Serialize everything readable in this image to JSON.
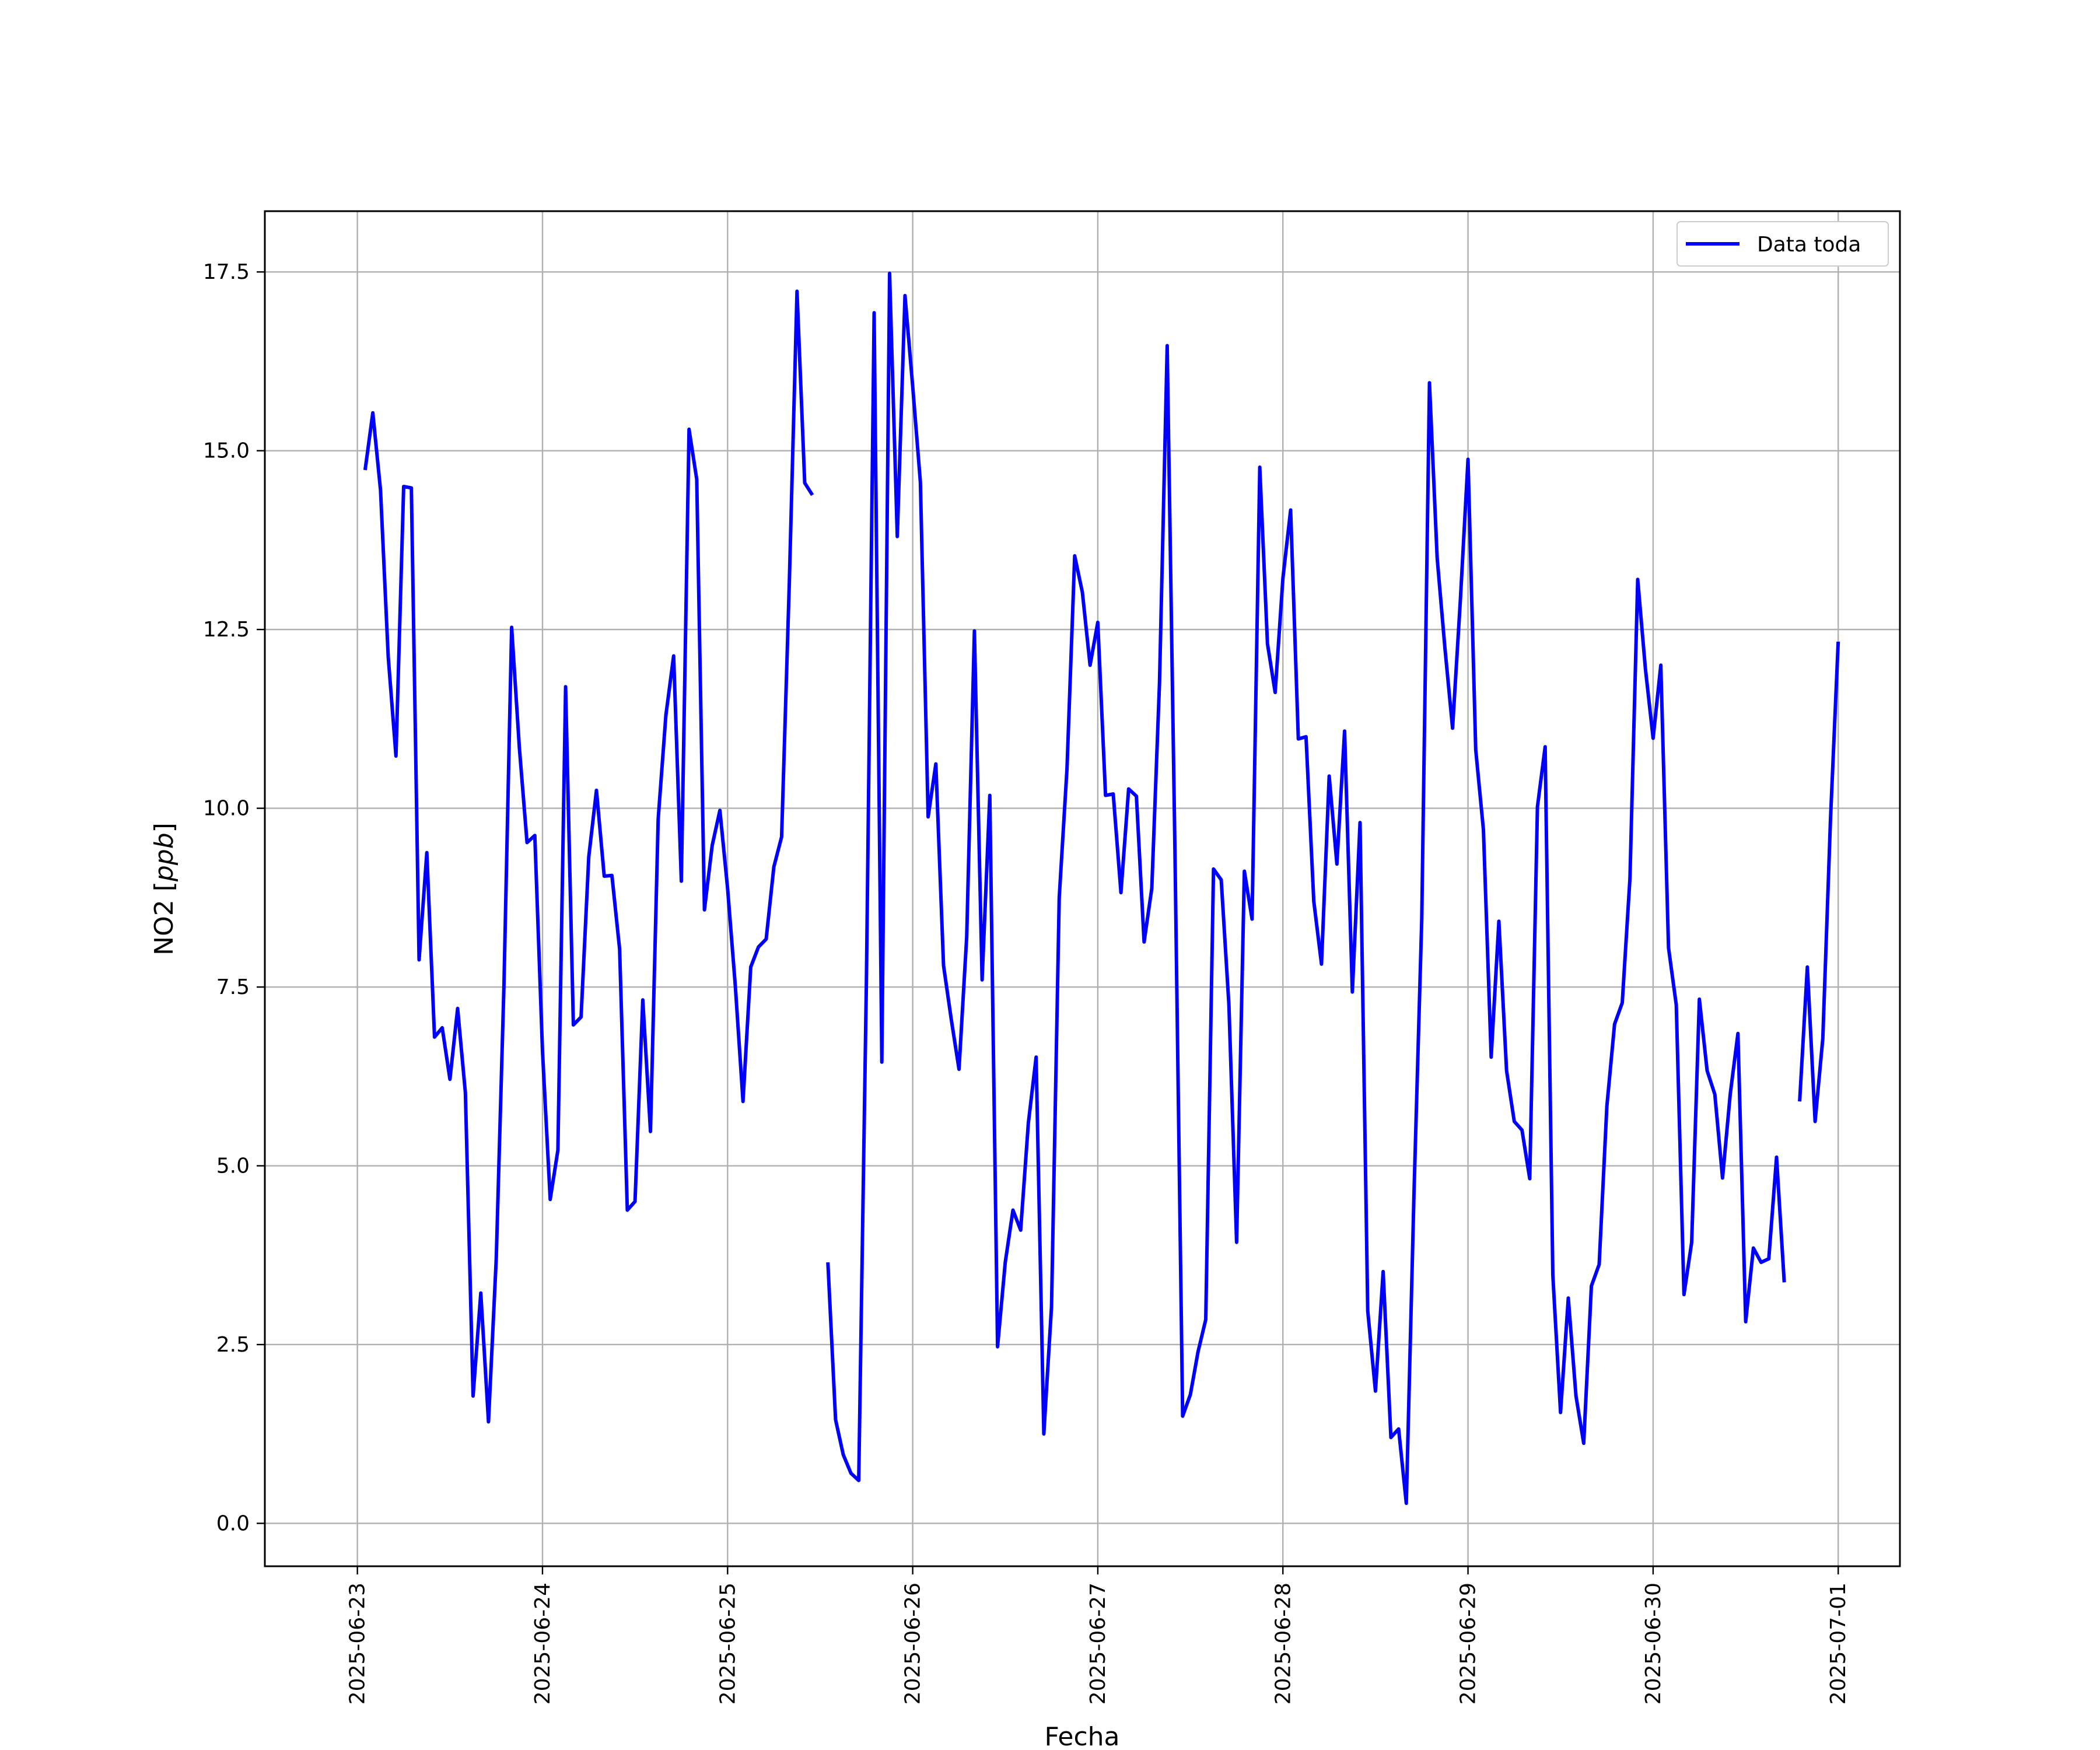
{
  "chart_data": {
    "type": "line",
    "title": "",
    "xlabel": "Fecha",
    "ylabel_main": "NO2",
    "ylabel_unit": "ppb",
    "x_tick_labels": [
      "2025-06-23",
      "2025-06-24",
      "2025-06-25",
      "2025-06-26",
      "2025-06-27",
      "2025-06-28",
      "2025-06-29",
      "2025-06-30",
      "2025-07-01"
    ],
    "y_tick_labels": [
      "0.0",
      "2.5",
      "5.0",
      "7.5",
      "10.0",
      "12.5",
      "15.0",
      "17.5"
    ],
    "y_ticks": [
      0,
      2.5,
      5,
      7.5,
      10,
      12.5,
      15,
      17.5
    ],
    "xlim": [
      "2025-06-22T12:00",
      "2025-07-01T08:00"
    ],
    "ylim": [
      -0.6,
      18.35
    ],
    "grid": true,
    "legend_position": "top-right",
    "series_color": "#0000ff",
    "series": [
      {
        "name": "Data toda",
        "points": [
          [
            "2025-06-23T01:00",
            14.73
          ],
          [
            "2025-06-23T02:00",
            15.53
          ],
          [
            "2025-06-23T03:00",
            14.45
          ],
          [
            "2025-06-23T04:00",
            12.12
          ],
          [
            "2025-06-23T05:00",
            10.73
          ],
          [
            "2025-06-23T06:00",
            14.5
          ],
          [
            "2025-06-23T07:00",
            14.48
          ],
          [
            "2025-06-23T08:00",
            7.88
          ],
          [
            "2025-06-23T09:00",
            9.38
          ],
          [
            "2025-06-23T10:00",
            6.8
          ],
          [
            "2025-06-23T11:00",
            6.93
          ],
          [
            "2025-06-23T12:00",
            6.21
          ],
          [
            "2025-06-23T13:00",
            7.2
          ],
          [
            "2025-06-23T14:00",
            6.02
          ],
          [
            "2025-06-23T15:00",
            1.78
          ],
          [
            "2025-06-23T16:00",
            3.22
          ],
          [
            "2025-06-23T17:00",
            1.42
          ],
          [
            "2025-06-23T18:00",
            3.7
          ],
          [
            "2025-06-23T19:00",
            7.52
          ],
          [
            "2025-06-23T20:00",
            12.53
          ],
          [
            "2025-06-23T21:00",
            10.85
          ],
          [
            "2025-06-23T22:00",
            9.52
          ],
          [
            "2025-06-23T23:00",
            9.62
          ],
          [
            "2025-06-24T00:00",
            6.6
          ],
          [
            "2025-06-24T01:00",
            4.53
          ],
          [
            "2025-06-24T02:00",
            5.22
          ],
          [
            "2025-06-24T03:00",
            11.7
          ],
          [
            "2025-06-24T04:00",
            6.97
          ],
          [
            "2025-06-24T05:00",
            7.08
          ],
          [
            "2025-06-24T06:00",
            9.32
          ],
          [
            "2025-06-24T07:00",
            10.25
          ],
          [
            "2025-06-24T08:00",
            9.05
          ],
          [
            "2025-06-24T09:00",
            9.06
          ],
          [
            "2025-06-24T10:00",
            8.03
          ],
          [
            "2025-06-24T11:00",
            4.38
          ],
          [
            "2025-06-24T12:00",
            4.5
          ],
          [
            "2025-06-24T13:00",
            7.32
          ],
          [
            "2025-06-24T14:00",
            5.48
          ],
          [
            "2025-06-24T15:00",
            9.85
          ],
          [
            "2025-06-24T16:00",
            11.3
          ],
          [
            "2025-06-24T17:00",
            12.13
          ],
          [
            "2025-06-24T18:00",
            8.98
          ],
          [
            "2025-06-24T19:00",
            15.3
          ],
          [
            "2025-06-24T20:00",
            14.6
          ],
          [
            "2025-06-24T21:00",
            8.58
          ],
          [
            "2025-06-24T22:00",
            9.48
          ],
          [
            "2025-06-24T23:00",
            9.97
          ],
          [
            "2025-06-25T00:00",
            8.88
          ],
          [
            "2025-06-25T01:00",
            7.52
          ],
          [
            "2025-06-25T02:00",
            5.9
          ],
          [
            "2025-06-25T03:00",
            7.78
          ],
          [
            "2025-06-25T04:00",
            8.06
          ],
          [
            "2025-06-25T05:00",
            8.17
          ],
          [
            "2025-06-25T06:00",
            9.18
          ],
          [
            "2025-06-25T07:00",
            9.6
          ],
          [
            "2025-06-25T08:00",
            13.15
          ],
          [
            "2025-06-25T09:00",
            17.23
          ],
          [
            "2025-06-25T10:00",
            14.55
          ],
          [
            "2025-06-25T11:00",
            14.38
          ],
          null,
          [
            "2025-06-25T13:00",
            3.65
          ],
          [
            "2025-06-25T14:00",
            1.45
          ],
          [
            "2025-06-25T15:00",
            0.96
          ],
          [
            "2025-06-25T16:00",
            0.7
          ],
          [
            "2025-06-25T17:00",
            0.6
          ],
          [
            "2025-06-25T18:00",
            7.6
          ],
          [
            "2025-06-25T19:00",
            16.93
          ],
          [
            "2025-06-25T20:00",
            6.45
          ],
          [
            "2025-06-25T21:00",
            17.48
          ],
          [
            "2025-06-25T22:00",
            13.8
          ],
          [
            "2025-06-25T23:00",
            17.17
          ],
          [
            "2025-06-26T00:00",
            15.9
          ],
          [
            "2025-06-26T01:00",
            14.56
          ],
          [
            "2025-06-26T02:00",
            9.88
          ],
          [
            "2025-06-26T03:00",
            10.62
          ],
          [
            "2025-06-26T04:00",
            7.8
          ],
          [
            "2025-06-26T05:00",
            7.05
          ],
          [
            "2025-06-26T06:00",
            6.35
          ],
          [
            "2025-06-26T07:00",
            8.2
          ],
          [
            "2025-06-26T08:00",
            12.48
          ],
          [
            "2025-06-26T09:00",
            7.6
          ],
          [
            "2025-06-26T10:00",
            10.18
          ],
          [
            "2025-06-26T11:00",
            2.47
          ],
          [
            "2025-06-26T12:00",
            3.65
          ],
          [
            "2025-06-26T13:00",
            4.38
          ],
          [
            "2025-06-26T14:00",
            4.1
          ],
          [
            "2025-06-26T15:00",
            5.6
          ],
          [
            "2025-06-26T16:00",
            6.52
          ],
          [
            "2025-06-26T17:00",
            1.25
          ],
          [
            "2025-06-26T18:00",
            3.03
          ],
          [
            "2025-06-26T19:00",
            8.75
          ],
          [
            "2025-06-26T20:00",
            10.55
          ],
          [
            "2025-06-26T21:00",
            13.53
          ],
          [
            "2025-06-26T22:00",
            13.02
          ],
          [
            "2025-06-26T23:00",
            12.0
          ],
          [
            "2025-06-27T00:00",
            12.6
          ],
          [
            "2025-06-27T01:00",
            10.18
          ],
          [
            "2025-06-27T02:00",
            10.2
          ],
          [
            "2025-06-27T03:00",
            8.82
          ],
          [
            "2025-06-27T04:00",
            10.27
          ],
          [
            "2025-06-27T05:00",
            10.17
          ],
          [
            "2025-06-27T06:00",
            8.13
          ],
          [
            "2025-06-27T07:00",
            8.88
          ],
          [
            "2025-06-27T08:00",
            11.75
          ],
          [
            "2025-06-27T09:00",
            16.47
          ],
          [
            "2025-06-27T10:00",
            9.4
          ],
          [
            "2025-06-27T11:00",
            1.5
          ],
          [
            "2025-06-27T12:00",
            1.8
          ],
          [
            "2025-06-27T13:00",
            2.4
          ],
          [
            "2025-06-27T14:00",
            2.85
          ],
          [
            "2025-06-27T15:00",
            9.15
          ],
          [
            "2025-06-27T16:00",
            9.0
          ],
          [
            "2025-06-27T17:00",
            7.25
          ],
          [
            "2025-06-27T18:00",
            3.93
          ],
          [
            "2025-06-27T19:00",
            9.12
          ],
          [
            "2025-06-27T20:00",
            8.45
          ],
          [
            "2025-06-27T21:00",
            14.77
          ],
          [
            "2025-06-27T22:00",
            12.3
          ],
          [
            "2025-06-27T23:00",
            11.62
          ],
          [
            "2025-06-28T00:00",
            13.22
          ],
          [
            "2025-06-28T01:00",
            14.17
          ],
          [
            "2025-06-28T02:00",
            10.97
          ],
          [
            "2025-06-28T03:00",
            11.0
          ],
          [
            "2025-06-28T04:00",
            8.7
          ],
          [
            "2025-06-28T05:00",
            7.82
          ],
          [
            "2025-06-28T06:00",
            10.45
          ],
          [
            "2025-06-28T07:00",
            9.22
          ],
          [
            "2025-06-28T08:00",
            11.08
          ],
          [
            "2025-06-28T09:00",
            7.43
          ],
          [
            "2025-06-28T10:00",
            9.8
          ],
          [
            "2025-06-28T11:00",
            2.97
          ],
          [
            "2025-06-28T12:00",
            1.85
          ],
          [
            "2025-06-28T13:00",
            3.52
          ],
          [
            "2025-06-28T14:00",
            1.2
          ],
          [
            "2025-06-28T15:00",
            1.32
          ],
          [
            "2025-06-28T16:00",
            0.28
          ],
          [
            "2025-06-28T17:00",
            4.62
          ],
          [
            "2025-06-28T18:00",
            8.45
          ],
          [
            "2025-06-28T19:00",
            15.95
          ],
          [
            "2025-06-28T20:00",
            13.5
          ],
          [
            "2025-06-28T21:00",
            12.25
          ],
          [
            "2025-06-28T22:00",
            11.12
          ],
          [
            "2025-06-28T23:00",
            12.9
          ],
          [
            "2025-06-29T00:00",
            14.88
          ],
          [
            "2025-06-29T01:00",
            10.82
          ],
          [
            "2025-06-29T02:00",
            9.7
          ],
          [
            "2025-06-29T03:00",
            6.52
          ],
          [
            "2025-06-29T04:00",
            8.42
          ],
          [
            "2025-06-29T05:00",
            6.33
          ],
          [
            "2025-06-29T06:00",
            5.62
          ],
          [
            "2025-06-29T07:00",
            5.5
          ],
          [
            "2025-06-29T08:00",
            4.82
          ],
          [
            "2025-06-29T09:00",
            10.02
          ],
          [
            "2025-06-29T10:00",
            10.86
          ],
          [
            "2025-06-29T11:00",
            3.47
          ],
          [
            "2025-06-29T12:00",
            1.55
          ],
          [
            "2025-06-29T13:00",
            3.15
          ],
          [
            "2025-06-29T14:00",
            1.78
          ],
          [
            "2025-06-29T15:00",
            1.12
          ],
          [
            "2025-06-29T16:00",
            3.32
          ],
          [
            "2025-06-29T17:00",
            3.62
          ],
          [
            "2025-06-29T18:00",
            5.83
          ],
          [
            "2025-06-29T19:00",
            6.98
          ],
          [
            "2025-06-29T20:00",
            7.28
          ],
          [
            "2025-06-29T21:00",
            9.02
          ],
          [
            "2025-06-29T22:00",
            13.2
          ],
          [
            "2025-06-29T23:00",
            11.95
          ],
          [
            "2025-06-30T00:00",
            10.98
          ],
          [
            "2025-06-30T01:00",
            12.0
          ],
          [
            "2025-06-30T02:00",
            8.05
          ],
          [
            "2025-06-30T03:00",
            7.25
          ],
          [
            "2025-06-30T04:00",
            3.2
          ],
          [
            "2025-06-30T05:00",
            3.93
          ],
          [
            "2025-06-30T06:00",
            7.33
          ],
          [
            "2025-06-30T07:00",
            6.33
          ],
          [
            "2025-06-30T08:00",
            6.0
          ],
          [
            "2025-06-30T09:00",
            4.83
          ],
          [
            "2025-06-30T10:00",
            6.0
          ],
          [
            "2025-06-30T11:00",
            6.85
          ],
          [
            "2025-06-30T12:00",
            2.82
          ],
          [
            "2025-06-30T13:00",
            3.85
          ],
          [
            "2025-06-30T14:00",
            3.65
          ],
          [
            "2025-06-30T15:00",
            3.7
          ],
          [
            "2025-06-30T16:00",
            5.12
          ],
          [
            "2025-06-30T17:00",
            3.37
          ],
          null,
          [
            "2025-06-30T19:00",
            5.9
          ],
          [
            "2025-06-30T20:00",
            7.78
          ],
          [
            "2025-06-30T21:00",
            5.62
          ],
          [
            "2025-06-30T22:00",
            6.78
          ],
          [
            "2025-06-30T23:00",
            9.85
          ],
          [
            "2025-07-01T00:00",
            12.33
          ]
        ]
      }
    ]
  }
}
